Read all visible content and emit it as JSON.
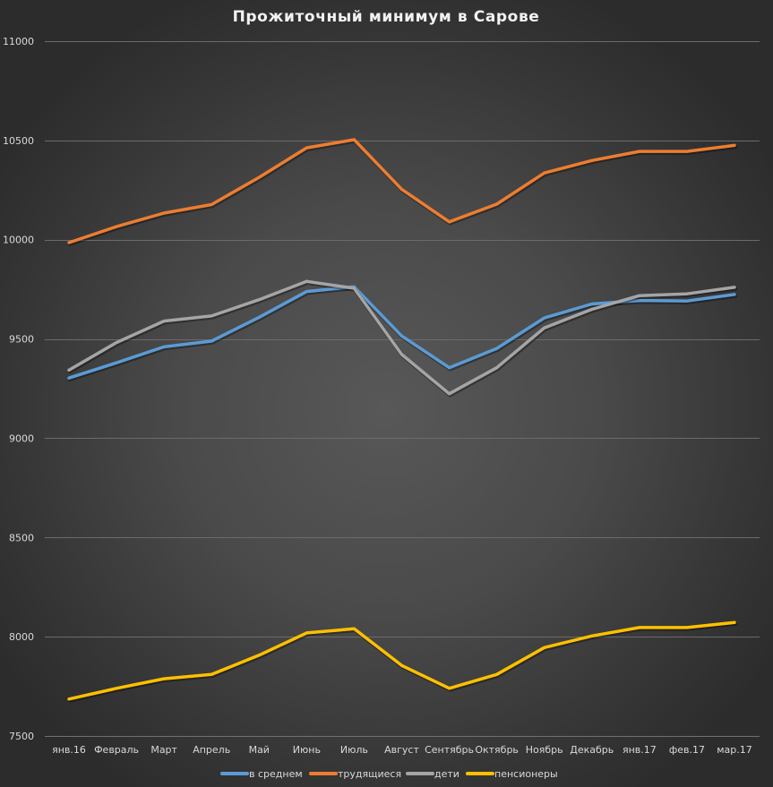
{
  "chart_data": {
    "type": "line",
    "title": "Прожиточный минимум в Сарове",
    "xlabel": "",
    "ylabel": "",
    "ylim": [
      7500,
      11000
    ],
    "yticks": [
      7500,
      8000,
      8500,
      9000,
      9500,
      10000,
      10500,
      11000
    ],
    "grid": true,
    "legend_position": "bottom",
    "categories": [
      "янв.16",
      "Февраль",
      "Март",
      "Апрель",
      "Май",
      "Июнь",
      "Июль",
      "Август",
      "Сентябрь",
      "Октябрь",
      "Ноябрь",
      "Декабрь",
      "янв.17",
      "фев.17",
      "мар.17"
    ],
    "series": [
      {
        "name": "в среднем",
        "color": "#5b9bd5",
        "values": [
          9303,
          9380,
          9460,
          9489,
          9609,
          9739,
          9763,
          9515,
          9355,
          9452,
          9606,
          9676,
          9694,
          9691,
          9724
        ]
      },
      {
        "name": "трудящиеся",
        "color": "#ed7d31",
        "values": [
          9985,
          10066,
          10134,
          10177,
          10314,
          10463,
          10504,
          10254,
          10090,
          10179,
          10336,
          10399,
          10445,
          10445,
          10475
        ]
      },
      {
        "name": "дети",
        "color": "#a5a5a5",
        "values": [
          9343,
          9482,
          9590,
          9616,
          9698,
          9790,
          9755,
          9422,
          9224,
          9355,
          9556,
          9649,
          9718,
          9727,
          9760
        ]
      },
      {
        "name": "пенсионеры",
        "color": "#ffc000",
        "values": [
          7686,
          7740,
          7788,
          7810,
          7907,
          8019,
          8040,
          7855,
          7740,
          7810,
          7945,
          8004,
          8046,
          8046,
          8072
        ]
      }
    ]
  }
}
